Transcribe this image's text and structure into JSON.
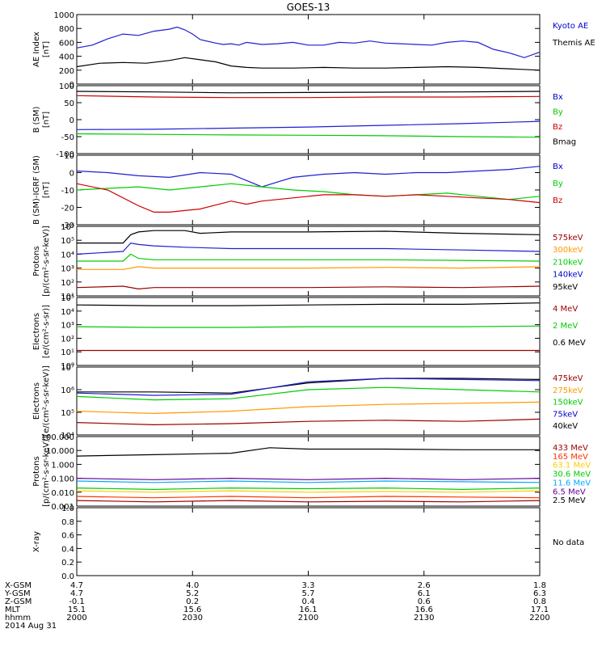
{
  "title": "GOES-13",
  "date_label": "2014 Aug 31",
  "chart_data": [
    {
      "id": "ae",
      "type": "line",
      "ylabel": "AE Index\n[nT]",
      "yticks": [
        "1000",
        "800",
        "600",
        "400",
        "200",
        "0"
      ],
      "ylim": [
        0,
        1000
      ],
      "legend": [
        {
          "label": "Kyoto AE",
          "color": "#0000cc"
        },
        {
          "label": "Themis AE",
          "color": "#000000"
        }
      ],
      "series": [
        {
          "name": "Kyoto AE",
          "color": "#1f1fd0",
          "x": [
            0,
            2,
            4,
            6,
            8,
            10,
            12,
            13,
            14,
            15,
            16,
            18,
            19,
            20,
            21,
            22,
            24,
            26,
            28,
            30,
            32,
            34,
            36,
            38,
            40,
            42,
            44,
            46,
            48,
            50,
            52,
            54,
            56,
            58,
            60
          ],
          "values": [
            520,
            560,
            650,
            720,
            700,
            760,
            790,
            820,
            780,
            720,
            640,
            590,
            570,
            580,
            560,
            600,
            570,
            580,
            600,
            560,
            560,
            600,
            590,
            620,
            590,
            580,
            570,
            560,
            600,
            620,
            600,
            500,
            450,
            380,
            460
          ]
        },
        {
          "name": "Themis AE",
          "color": "#000000",
          "x": [
            0,
            3,
            6,
            9,
            12,
            14,
            16,
            18,
            20,
            22,
            24,
            28,
            32,
            36,
            40,
            44,
            48,
            52,
            56,
            60
          ],
          "values": [
            250,
            300,
            310,
            300,
            340,
            380,
            350,
            320,
            260,
            240,
            230,
            230,
            240,
            230,
            230,
            240,
            250,
            240,
            220,
            200
          ]
        }
      ]
    },
    {
      "id": "b-sm",
      "type": "line",
      "ylabel": "B (SM)\n[nT]",
      "yticks": [
        "100",
        "50",
        "0",
        "-50",
        "-100"
      ],
      "ylim": [
        -120,
        120
      ],
      "legend": [
        {
          "label": "Bx",
          "color": "#0000cc"
        },
        {
          "label": "By",
          "color": "#00cc00"
        },
        {
          "label": "Bz",
          "color": "#cc0000"
        },
        {
          "label": "Bmag",
          "color": "#000000"
        }
      ],
      "series": [
        {
          "name": "Bmag",
          "color": "#000000",
          "x": [
            0,
            10,
            20,
            30,
            40,
            50,
            60
          ],
          "values": [
            100,
            98,
            95,
            96,
            97,
            98,
            100
          ]
        },
        {
          "name": "Bz",
          "color": "#cc0000",
          "x": [
            0,
            10,
            20,
            30,
            40,
            50,
            60
          ],
          "values": [
            85,
            80,
            78,
            78,
            80,
            80,
            82
          ]
        },
        {
          "name": "Bx",
          "color": "#1f1fd0",
          "x": [
            0,
            10,
            20,
            30,
            40,
            50,
            60
          ],
          "values": [
            -35,
            -34,
            -30,
            -26,
            -20,
            -14,
            -6
          ]
        },
        {
          "name": "By",
          "color": "#00cc00",
          "x": [
            0,
            10,
            20,
            30,
            40,
            50,
            60
          ],
          "values": [
            -50,
            -52,
            -54,
            -55,
            -57,
            -60,
            -62
          ]
        }
      ]
    },
    {
      "id": "b-igrf",
      "type": "line",
      "ylabel": "B (SM)-IGRF (SM)\n[nT]",
      "yticks": [
        "10",
        "0",
        "-10",
        "-20",
        "-30"
      ],
      "ylim": [
        -32,
        12
      ],
      "legend": [
        {
          "label": "Bx",
          "color": "#0000cc"
        },
        {
          "label": "By",
          "color": "#00cc00"
        },
        {
          "label": "Bz",
          "color": "#cc0000"
        }
      ],
      "series": [
        {
          "name": "Bx",
          "color": "#1f1fd0",
          "x": [
            0,
            4,
            8,
            12,
            16,
            20,
            22,
            24,
            26,
            28,
            30,
            32,
            36,
            40,
            44,
            48,
            52,
            56,
            60
          ],
          "values": [
            2,
            1,
            -1,
            -2,
            1,
            0,
            -4,
            -8,
            -5,
            -2,
            -1,
            0,
            1,
            0,
            1,
            1,
            2,
            3,
            5
          ]
        },
        {
          "name": "By",
          "color": "#00cc00",
          "x": [
            0,
            4,
            8,
            12,
            16,
            20,
            24,
            28,
            32,
            36,
            40,
            44,
            48,
            52,
            56,
            60
          ],
          "values": [
            -10,
            -9,
            -8,
            -10,
            -8,
            -6,
            -8,
            -10,
            -11,
            -13,
            -14,
            -13,
            -12,
            -14,
            -16,
            -14
          ]
        },
        {
          "name": "Bz",
          "color": "#cc0000",
          "x": [
            0,
            4,
            8,
            10,
            12,
            14,
            16,
            20,
            22,
            24,
            28,
            32,
            36,
            40,
            44,
            48,
            52,
            56,
            60
          ],
          "values": [
            -6,
            -10,
            -20,
            -24,
            -24,
            -23,
            -22,
            -17,
            -19,
            -17,
            -15,
            -13,
            -13,
            -14,
            -13,
            -14,
            -15,
            -16,
            -18
          ]
        }
      ]
    },
    {
      "id": "protons-low",
      "type": "line",
      "log": true,
      "ylabel": "Protons\n[p/(cm²-s-sr-keV)]",
      "yticks": [
        "10⁶",
        "10⁵",
        "10⁴",
        "10³",
        "10²",
        "10¹"
      ],
      "ylim": [
        1,
        6
      ],
      "legend": [
        {
          "label": "575keV",
          "color": "#990000"
        },
        {
          "label": "300keV",
          "color": "#ff9900"
        },
        {
          "label": "210keV",
          "color": "#00cc00"
        },
        {
          "label": "140keV",
          "color": "#0000cc"
        },
        {
          "label": "95keV",
          "color": "#000000"
        }
      ],
      "series": [
        {
          "name": "575keV",
          "color": "#000000",
          "x": [
            0,
            6,
            7,
            8,
            10,
            14,
            16,
            20,
            30,
            40,
            50,
            60
          ],
          "values": [
            4.8,
            4.8,
            5.4,
            5.6,
            5.7,
            5.7,
            5.5,
            5.6,
            5.6,
            5.65,
            5.5,
            5.4
          ]
        },
        {
          "name": "300keV",
          "color": "#1f1fd0",
          "x": [
            0,
            6,
            7,
            8,
            10,
            14,
            20,
            30,
            40,
            50,
            60
          ],
          "values": [
            4.0,
            4.2,
            4.8,
            4.7,
            4.6,
            4.5,
            4.4,
            4.4,
            4.4,
            4.3,
            4.2
          ]
        },
        {
          "name": "210keV",
          "color": "#00cc00",
          "x": [
            0,
            6,
            7,
            8,
            10,
            20,
            30,
            40,
            50,
            60
          ],
          "values": [
            3.5,
            3.5,
            4.0,
            3.7,
            3.6,
            3.6,
            3.6,
            3.6,
            3.55,
            3.5
          ]
        },
        {
          "name": "140keV",
          "color": "#ff9900",
          "x": [
            0,
            6,
            8,
            10,
            20,
            30,
            40,
            50,
            60
          ],
          "values": [
            2.9,
            2.9,
            3.1,
            3.0,
            3.0,
            3.0,
            3.05,
            3.0,
            3.1
          ]
        },
        {
          "name": "95keV",
          "color": "#990000",
          "x": [
            0,
            6,
            8,
            10,
            20,
            30,
            40,
            50,
            60
          ],
          "values": [
            1.6,
            1.7,
            1.5,
            1.6,
            1.6,
            1.6,
            1.65,
            1.6,
            1.7
          ]
        }
      ]
    },
    {
      "id": "electrons-high",
      "type": "line",
      "log": true,
      "ylabel": "Electrons\n[e/(cm²-s-sr)]",
      "yticks": [
        "10⁵",
        "10⁴",
        "10³",
        "10²",
        "10¹",
        "10⁰"
      ],
      "ylim": [
        0,
        5
      ],
      "legend": [
        {
          "label": "4 MeV",
          "color": "#990000"
        },
        {
          "label": "2 MeV",
          "color": "#00cc00"
        },
        {
          "label": "0.6 MeV",
          "color": "#000000"
        }
      ],
      "series": [
        {
          "name": "0.6 MeV",
          "color": "#000000",
          "x": [
            0,
            10,
            20,
            30,
            40,
            50,
            60
          ],
          "values": [
            4.45,
            4.4,
            4.4,
            4.45,
            4.5,
            4.5,
            4.6
          ]
        },
        {
          "name": "2 MeV",
          "color": "#00cc00",
          "x": [
            0,
            10,
            20,
            30,
            40,
            50,
            60
          ],
          "values": [
            2.85,
            2.8,
            2.8,
            2.85,
            2.85,
            2.85,
            2.9
          ]
        },
        {
          "name": "4 MeV",
          "color": "#990000",
          "x": [
            0,
            10,
            20,
            30,
            40,
            50,
            60
          ],
          "values": [
            1.1,
            1.1,
            1.1,
            1.1,
            1.1,
            1.1,
            1.1
          ]
        }
      ]
    },
    {
      "id": "electrons-low",
      "type": "line",
      "log": true,
      "ylabel": "Electrons\n[e/(cm²-s-sr-keV)]",
      "yticks": [
        "10⁷",
        "10⁶",
        "10⁵",
        "10⁴"
      ],
      "ylim": [
        4,
        7
      ],
      "legend": [
        {
          "label": "475keV",
          "color": "#990000"
        },
        {
          "label": "275keV",
          "color": "#ff9900"
        },
        {
          "label": "150keV",
          "color": "#00cc00"
        },
        {
          "label": "75keV",
          "color": "#0000cc"
        },
        {
          "label": "40keV",
          "color": "#000000"
        }
      ],
      "series": [
        {
          "name": "475keV",
          "color": "#000000",
          "x": [
            0,
            10,
            20,
            30,
            40,
            50,
            60
          ],
          "values": [
            5.9,
            5.9,
            5.85,
            6.3,
            6.5,
            6.5,
            6.45
          ]
        },
        {
          "name": "275keV",
          "color": "#1f1fd0",
          "x": [
            0,
            10,
            20,
            30,
            40,
            50,
            60
          ],
          "values": [
            5.85,
            5.75,
            5.8,
            6.35,
            6.5,
            6.45,
            6.4
          ]
        },
        {
          "name": "150keV",
          "color": "#00cc00",
          "x": [
            0,
            10,
            20,
            30,
            40,
            50,
            60
          ],
          "values": [
            5.7,
            5.55,
            5.6,
            6.0,
            6.1,
            6.0,
            5.9
          ]
        },
        {
          "name": "75keV",
          "color": "#ff9900",
          "x": [
            0,
            10,
            20,
            30,
            40,
            50,
            60
          ],
          "values": [
            5.05,
            4.95,
            5.05,
            5.25,
            5.35,
            5.4,
            5.45
          ]
        },
        {
          "name": "40keV",
          "color": "#990000",
          "x": [
            0,
            10,
            20,
            30,
            40,
            50,
            60
          ],
          "values": [
            4.55,
            4.45,
            4.5,
            4.6,
            4.65,
            4.6,
            4.7
          ]
        }
      ]
    },
    {
      "id": "protons-high",
      "type": "line",
      "log": true,
      "ylabel": "Protons\n[p/(cm²-s-sr-keV)]",
      "yticks": [
        "100.000",
        "10.000",
        "1.000",
        "0.100",
        "0.010",
        "0.001"
      ],
      "ylim": [
        -3,
        2
      ],
      "legend": [
        {
          "label": "433 MeV",
          "color": "#990000"
        },
        {
          "label": "165 MeV",
          "color": "#ff3300"
        },
        {
          "label": "63.1 MeV",
          "color": "#ffcc00"
        },
        {
          "label": "30.6 MeV",
          "color": "#00cc00"
        },
        {
          "label": "11.6 MeV",
          "color": "#00aaff"
        },
        {
          "label": "6.5 MeV",
          "color": "#660099"
        },
        {
          "label": "2.5 MeV",
          "color": "#000000"
        }
      ],
      "series": [
        {
          "name": "433 MeV",
          "color": "#000000",
          "x": [
            0,
            10,
            20,
            25,
            30,
            40,
            50,
            60
          ],
          "values": [
            0.6,
            0.7,
            0.8,
            1.2,
            1.1,
            1.1,
            1.05,
            1.05
          ]
        },
        {
          "name": "165 MeV",
          "color": "#660099",
          "x": [
            0,
            10,
            20,
            30,
            40,
            50,
            60
          ],
          "values": [
            -1.0,
            -1.1,
            -1.0,
            -1.1,
            -1.0,
            -1.1,
            -1.0
          ]
        },
        {
          "name": "63.1 MeV",
          "color": "#00aaff",
          "x": [
            0,
            10,
            20,
            30,
            40,
            50,
            60
          ],
          "values": [
            -1.2,
            -1.3,
            -1.2,
            -1.3,
            -1.2,
            -1.25,
            -1.3
          ]
        },
        {
          "name": "30.6 MeV",
          "color": "#00cc00",
          "x": [
            0,
            10,
            20,
            30,
            40,
            50,
            60
          ],
          "values": [
            -1.7,
            -1.8,
            -1.7,
            -1.75,
            -1.7,
            -1.8,
            -1.7
          ]
        },
        {
          "name": "11.6 MeV",
          "color": "#ffcc00",
          "x": [
            0,
            10,
            20,
            30,
            40,
            50,
            60
          ],
          "values": [
            -1.9,
            -2.0,
            -1.9,
            -2.0,
            -1.95,
            -2.0,
            -1.9
          ]
        },
        {
          "name": "6.5 MeV",
          "color": "#ff3300",
          "x": [
            0,
            10,
            20,
            30,
            40,
            50,
            60
          ],
          "values": [
            -2.3,
            -2.4,
            -2.3,
            -2.4,
            -2.3,
            -2.35,
            -2.4
          ]
        },
        {
          "name": "2.5 MeV",
          "color": "#990000",
          "x": [
            0,
            10,
            20,
            30,
            40,
            50,
            60
          ],
          "values": [
            -2.6,
            -2.7,
            -2.6,
            -2.7,
            -2.65,
            -2.7,
            -2.6
          ]
        }
      ]
    },
    {
      "id": "xray",
      "type": "line",
      "ylabel": "X-ray",
      "yticks": [
        "1.0",
        "0.8",
        "0.6",
        "0.4",
        "0.2",
        "0.0"
      ],
      "ylim": [
        0,
        1
      ],
      "legend": [],
      "note": "No data",
      "series": []
    }
  ],
  "ephemeris": {
    "rows": [
      {
        "label": "X-GSM",
        "values": [
          "4.7",
          "4.0",
          "3.3",
          "2.6",
          "1.8"
        ]
      },
      {
        "label": "Y-GSM",
        "values": [
          "4.7",
          "5.2",
          "5.7",
          "6.1",
          "6.3"
        ]
      },
      {
        "label": "Z-GSM",
        "values": [
          "-0.1",
          "0.2",
          "0.4",
          "0.6",
          "0.8"
        ]
      },
      {
        "label": "MLT",
        "values": [
          "15.1",
          "15.6",
          "16.1",
          "16.6",
          "17.1"
        ]
      },
      {
        "label": "hhmm",
        "values": [
          "2000",
          "2030",
          "2100",
          "2130",
          "2200"
        ]
      }
    ]
  }
}
